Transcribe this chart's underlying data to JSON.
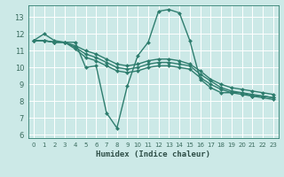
{
  "series": [
    {
      "x": [
        0,
        1,
        2,
        3,
        4,
        5,
        6,
        7,
        8,
        9,
        10,
        11,
        12,
        13,
        14,
        15,
        16,
        17,
        18,
        19,
        20,
        21,
        22,
        23
      ],
      "y": [
        11.6,
        12.0,
        11.6,
        11.5,
        11.5,
        10.0,
        10.1,
        7.3,
        6.4,
        8.9,
        10.7,
        11.5,
        13.35,
        13.45,
        13.25,
        11.6,
        9.3,
        8.8,
        8.5,
        8.5,
        8.5,
        8.3,
        8.3,
        8.2
      ]
    },
    {
      "x": [
        0,
        1,
        2,
        3,
        4,
        5,
        6,
        7,
        8,
        9,
        10,
        11,
        12,
        13,
        14,
        15,
        16,
        17,
        18,
        19,
        20,
        21,
        22,
        23
      ],
      "y": [
        11.6,
        11.6,
        11.5,
        11.5,
        11.3,
        11.0,
        10.8,
        10.5,
        10.2,
        10.1,
        10.2,
        10.4,
        10.5,
        10.5,
        10.4,
        10.2,
        9.8,
        9.3,
        9.0,
        8.8,
        8.7,
        8.6,
        8.5,
        8.4
      ]
    },
    {
      "x": [
        0,
        1,
        2,
        3,
        4,
        5,
        6,
        7,
        8,
        9,
        10,
        11,
        12,
        13,
        14,
        15,
        16,
        17,
        18,
        19,
        20,
        21,
        22,
        23
      ],
      "y": [
        11.6,
        11.6,
        11.5,
        11.5,
        11.2,
        10.8,
        10.6,
        10.3,
        10.0,
        9.9,
        10.0,
        10.2,
        10.3,
        10.3,
        10.2,
        10.1,
        9.6,
        9.2,
        8.8,
        8.6,
        8.5,
        8.4,
        8.3,
        8.2
      ]
    },
    {
      "x": [
        0,
        1,
        2,
        3,
        4,
        5,
        6,
        7,
        8,
        9,
        10,
        11,
        12,
        13,
        14,
        15,
        16,
        17,
        18,
        19,
        20,
        21,
        22,
        23
      ],
      "y": [
        11.6,
        11.6,
        11.5,
        11.5,
        11.1,
        10.6,
        10.4,
        10.1,
        9.8,
        9.7,
        9.8,
        10.0,
        10.1,
        10.1,
        10.0,
        9.9,
        9.4,
        9.0,
        8.7,
        8.5,
        8.4,
        8.3,
        8.2,
        8.1
      ]
    }
  ],
  "xlabel": "Humidex (Indice chaleur)",
  "xlim": [
    -0.5,
    23.5
  ],
  "ylim": [
    5.8,
    13.7
  ],
  "yticks": [
    6,
    7,
    8,
    9,
    10,
    11,
    12,
    13
  ],
  "xticks": [
    0,
    1,
    2,
    3,
    4,
    5,
    6,
    7,
    8,
    9,
    10,
    11,
    12,
    13,
    14,
    15,
    16,
    17,
    18,
    19,
    20,
    21,
    22,
    23
  ],
  "bg_color": "#cce9e7",
  "grid_color": "#ffffff",
  "line_color": "#2e7d6e",
  "tick_color": "#3a6b5e",
  "label_color": "#2e4e47",
  "marker": "D",
  "markersize": 2.0,
  "linewidth": 1.0
}
